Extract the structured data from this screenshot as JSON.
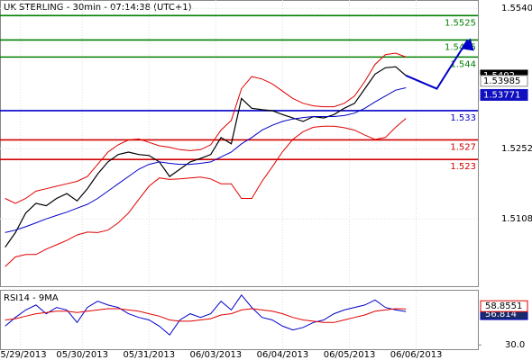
{
  "chart_data": {
    "type": "line",
    "title": "UK STERLING - 30min - 07:14:38 (UTC+1)",
    "x": [
      0,
      1,
      2,
      3,
      4,
      5,
      6,
      7,
      8,
      9,
      10,
      11,
      12,
      13,
      14,
      15,
      16,
      17,
      18,
      19,
      20,
      21,
      22,
      23,
      24,
      25,
      26,
      27,
      28,
      29,
      30,
      31,
      32,
      33,
      34,
      35,
      36,
      37,
      38,
      39
    ],
    "xlim": [
      -0.5,
      46
    ],
    "xticks": [
      {
        "value": 1.5,
        "label": "05/29/2013"
      },
      {
        "value": 7.5,
        "label": "05/30/2013"
      },
      {
        "value": 14,
        "label": "05/31/2013"
      },
      {
        "value": 20.5,
        "label": "06/03/2013"
      },
      {
        "value": 27,
        "label": "06/04/2013"
      },
      {
        "value": 33.5,
        "label": "06/05/2013"
      },
      {
        "value": 40,
        "label": "06/06/2013"
      }
    ],
    "ylim": [
      1.497,
      1.5557
    ],
    "yticks": [
      {
        "value": 1.554,
        "label": "1.5540"
      },
      1.5252,
      1.5108
    ],
    "grid": true,
    "series": [
      {
        "color": "#000000",
        "values": [
          1.505,
          1.508,
          1.512,
          1.514,
          1.5135,
          1.515,
          1.516,
          1.5145,
          1.517,
          1.52,
          1.5225,
          1.524,
          1.5245,
          1.524,
          1.5238,
          1.5225,
          1.5195,
          1.521,
          1.5225,
          1.5232,
          1.524,
          1.5275,
          1.5262,
          1.5355,
          1.5335,
          1.5332,
          1.533,
          1.5322,
          1.5315,
          1.5308,
          1.5318,
          1.5315,
          1.5322,
          1.5335,
          1.5345,
          1.5375,
          1.5405,
          1.5418,
          1.542,
          1.5402
        ]
      },
      {
        "color": "#e00000",
        "values": [
          1.515,
          1.514,
          1.515,
          1.5165,
          1.517,
          1.5175,
          1.518,
          1.5185,
          1.5195,
          1.522,
          1.5245,
          1.526,
          1.527,
          1.5272,
          1.5265,
          1.5258,
          1.5255,
          1.525,
          1.5248,
          1.525,
          1.526,
          1.529,
          1.531,
          1.5375,
          1.54,
          1.5395,
          1.5385,
          1.537,
          1.5355,
          1.5345,
          1.534,
          1.5338,
          1.5338,
          1.5345,
          1.536,
          1.539,
          1.5425,
          1.5445,
          1.5448,
          1.544
        ]
      },
      {
        "color": "#0000c8",
        "values": [
          1.508,
          1.5085,
          1.5092,
          1.51,
          1.5108,
          1.5115,
          1.5122,
          1.513,
          1.5138,
          1.515,
          1.5165,
          1.518,
          1.5195,
          1.521,
          1.522,
          1.5225,
          1.5222,
          1.522,
          1.522,
          1.5222,
          1.5225,
          1.5235,
          1.5245,
          1.5262,
          1.5275,
          1.529,
          1.53,
          1.5308,
          1.5313,
          1.5316,
          1.5318,
          1.5318,
          1.5318,
          1.532,
          1.5325,
          1.5335,
          1.5348,
          1.536,
          1.5372,
          1.53771
        ]
      },
      {
        "color": "#e00000",
        "values": [
          1.501,
          1.503,
          1.5035,
          1.5035,
          1.5046,
          1.5055,
          1.5064,
          1.5075,
          1.5081,
          1.508,
          1.5085,
          1.51,
          1.512,
          1.5148,
          1.5175,
          1.5192,
          1.5189,
          1.519,
          1.5192,
          1.5194,
          1.519,
          1.518,
          1.518,
          1.515,
          1.515,
          1.5185,
          1.5215,
          1.5246,
          1.5271,
          1.5287,
          1.5296,
          1.5298,
          1.5298,
          1.5295,
          1.529,
          1.528,
          1.5271,
          1.5275,
          1.5296,
          1.5314
        ]
      }
    ],
    "levels": [
      {
        "value": 1.5525,
        "color": "#008000"
      },
      {
        "value": 1.5475,
        "color": "#008000"
      },
      {
        "value": 1.544,
        "color": "#008000"
      },
      {
        "value": 1.533,
        "color": "#0000c8"
      },
      {
        "value": 1.527,
        "color": "#d00000"
      },
      {
        "value": 1.523,
        "color": "#d00000"
      }
    ],
    "forecast": {
      "color": "#0000c8",
      "x": [
        39,
        42,
        45
      ],
      "values": [
        1.5402,
        1.5375,
        1.5475
      ]
    },
    "price_tags": [
      {
        "value": 1.5402,
        "color": "#000000"
      },
      {
        "value": 1.53985,
        "color": "#ffffff"
      },
      {
        "value": 1.53771,
        "color": "#1010c0"
      }
    ],
    "rsi": {
      "title": "RSI14 - 9MA",
      "ylim": [
        28,
        72
      ],
      "yticks": [
        {
          "value": 30,
          "label": "30.0"
        }
      ],
      "series": [
        {
          "color": "#0000c8",
          "values": [
            45,
            52,
            58,
            62,
            55,
            60,
            58,
            48,
            60,
            65,
            62,
            60,
            55,
            52,
            50,
            45,
            38,
            50,
            55,
            52,
            55,
            65,
            58,
            70,
            60,
            52,
            50,
            45,
            42,
            44,
            48,
            50,
            55,
            58,
            60,
            62,
            66,
            60,
            58,
            56.814
          ]
        },
        {
          "color": "#e00000",
          "values": [
            50,
            51,
            53,
            55,
            56,
            57,
            57,
            56,
            57,
            58,
            59,
            59,
            58,
            57,
            55,
            53,
            50,
            49,
            49,
            50,
            51,
            54,
            55,
            58,
            59,
            58,
            57,
            55,
            52,
            50,
            49,
            48,
            48,
            50,
            52,
            54,
            57,
            58,
            59,
            58.8551
          ]
        }
      ]
    }
  }
}
